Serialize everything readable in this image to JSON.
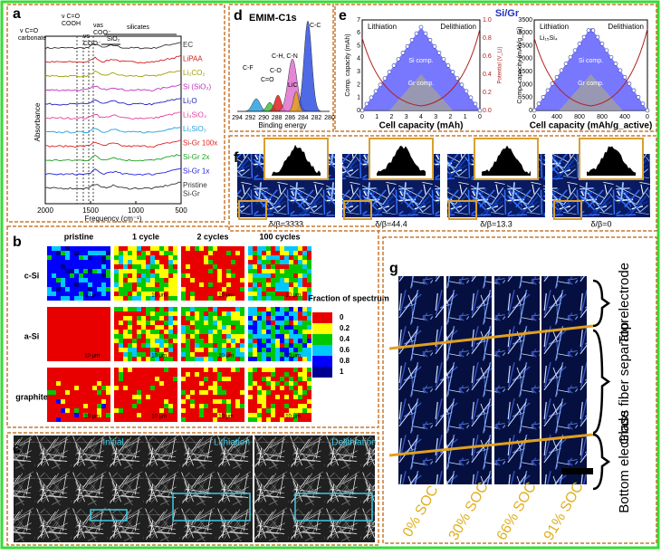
{
  "figure": {
    "panel_a": {
      "label": "a",
      "y_label": "Absorbance",
      "x_label": "Frequency (cm⁻¹)",
      "x_ticks": [
        "2000",
        "1500",
        "1000",
        "500"
      ],
      "annotations": [
        "ν C=O",
        "carbonate",
        "ν C=O",
        "COOH",
        "νas",
        "COO⁻",
        "νs",
        "COO⁻",
        "silicates",
        "SiO₂"
      ],
      "traces": [
        {
          "name": "EC",
          "color": "#333333"
        },
        {
          "name": "LiPAA",
          "color": "#d02020"
        },
        {
          "name": "Li₂CO₂",
          "color": "#a0a000"
        },
        {
          "name": "Si (SiO₂)",
          "color": "#c030c0"
        },
        {
          "name": "Li₂O",
          "color": "#2020c0"
        },
        {
          "name": "Li₄SiO₄",
          "color": "#e040a0"
        },
        {
          "name": "Li₂SiO₃",
          "color": "#20a0e0"
        },
        {
          "name": "Si-Gr 100x",
          "color": "#e02020"
        },
        {
          "name": "Si-Gr 2x",
          "color": "#20a020"
        },
        {
          "name": "Si-Gr 1x",
          "color": "#2020e0"
        },
        {
          "name": "Pristine",
          "color": "#333333"
        }
      ],
      "trace_note": "Si-Gr"
    },
    "panel_b": {
      "label": "b",
      "columns": [
        "pristine",
        "1 cycle",
        "2 cycles",
        "100 cycles"
      ],
      "rows": [
        "c-Si",
        "a-Si",
        "graphite"
      ],
      "scale_bar": "10 μm",
      "colorbar_title": "Fraction of spectrum",
      "colorbar_colors": [
        "#e80000",
        "#ffff00",
        "#00c800",
        "#00c8ff",
        "#0000ff",
        "#000090"
      ],
      "colorbar_labels": [
        "0",
        "0.2",
        "0.4",
        "0.6",
        "0.8",
        "1"
      ]
    },
    "panel_c": {
      "label": "c",
      "images": [
        "Initial",
        "Lithiation",
        "Delithiation"
      ]
    },
    "panel_d": {
      "label": "d",
      "title": "EMIM-C1s",
      "x_label": "Binding energy",
      "x_ticks": [
        "294",
        "292",
        "290",
        "288",
        "286",
        "284",
        "282",
        "280"
      ],
      "peaks": [
        {
          "name": "C-F",
          "color": "#2aa0e0"
        },
        {
          "name": "C=O",
          "color": "#40c040"
        },
        {
          "name": "C-O",
          "color": "#e02020"
        },
        {
          "name": "C-H, C-N",
          "color": "#e070d0"
        },
        {
          "name": "C-C",
          "color": "#3050e0"
        },
        {
          "name": "LiC",
          "color": "#e0a020"
        }
      ]
    },
    "panel_e": {
      "label": "e",
      "title": "Si/Gr",
      "left": {
        "y_label": "Comp. capacity (mAh)",
        "x_label": "Cell capacity (mAh)",
        "y2_label": "Potential (V_Li)",
        "phases": [
          "Lithiation",
          "Delithiation"
        ],
        "components": [
          "Si comp.",
          "Gr comp."
        ],
        "x_ticks": [
          "0",
          "1",
          "2",
          "3",
          "4",
          "3",
          "2",
          "1",
          "0"
        ],
        "y_ticks": [
          "0",
          "1",
          "2",
          "3",
          "4",
          "5",
          "6",
          "7"
        ],
        "y2_ticks": [
          "0.0",
          "0.2",
          "0.4",
          "0.6",
          "0.8",
          "1.0"
        ]
      },
      "right": {
        "y_label": "Comp. capacity (mAh/g_Si)",
        "x_label": "Cell capacity (mAh/g_active)",
        "phase_note": "Li₁₅Si₄",
        "phases": [
          "Lithiation",
          "Delithiation"
        ],
        "components": [
          "Si comp.",
          "Gr comp."
        ],
        "x_ticks": [
          "0",
          "400",
          "800",
          "800",
          "400",
          "0"
        ],
        "y_ticks": [
          "0",
          "500",
          "1000",
          "1500",
          "2000",
          "2500",
          "3000",
          "3500"
        ]
      }
    },
    "panel_f": {
      "label": "f",
      "images": [
        "δ/β=3333",
        "δ/β=44.4",
        "δ/β=13.3",
        "δ/β=0"
      ]
    },
    "panel_g": {
      "label": "g",
      "regions": [
        "Top electrode",
        "Glass fiber separator",
        "Bottom electrode"
      ],
      "states": [
        "0% SOC",
        "30% SOC",
        "66% SOC",
        "91% SOC"
      ]
    }
  }
}
